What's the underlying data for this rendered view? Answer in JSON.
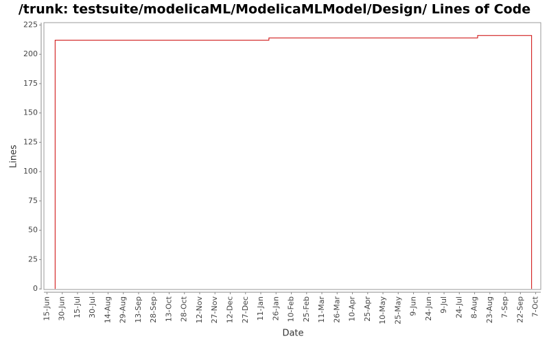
{
  "chart_data": {
    "type": "line",
    "title": "/trunk: testsuite/modelicaML/ModelicaMLModel/Design/ Lines of Code",
    "x_label": "Date",
    "y_label": "Lines",
    "step": "post",
    "x": [
      8,
      8,
      218,
      423,
      476,
      476
    ],
    "series": [
      {
        "color": "#cc0000",
        "values": [
          0,
          212,
          214,
          216,
          216,
          0
        ]
      }
    ],
    "xlim": [
      -3,
      485
    ],
    "xticks": [
      {
        "value": 0,
        "label": "15-Jun"
      },
      {
        "value": 15,
        "label": "30-Jun"
      },
      {
        "value": 30,
        "label": "15-Jul"
      },
      {
        "value": 45,
        "label": "30-Jul"
      },
      {
        "value": 60,
        "label": "14-Aug"
      },
      {
        "value": 75,
        "label": "29-Aug"
      },
      {
        "value": 90,
        "label": "13-Sep"
      },
      {
        "value": 105,
        "label": "28-Sep"
      },
      {
        "value": 120,
        "label": "13-Oct"
      },
      {
        "value": 135,
        "label": "28-Oct"
      },
      {
        "value": 150,
        "label": "12-Nov"
      },
      {
        "value": 165,
        "label": "27-Nov"
      },
      {
        "value": 180,
        "label": "12-Dec"
      },
      {
        "value": 195,
        "label": "27-Dec"
      },
      {
        "value": 210,
        "label": "11-Jan"
      },
      {
        "value": 225,
        "label": "26-Jan"
      },
      {
        "value": 240,
        "label": "10-Feb"
      },
      {
        "value": 255,
        "label": "25-Feb"
      },
      {
        "value": 270,
        "label": "11-Mar"
      },
      {
        "value": 285,
        "label": "26-Mar"
      },
      {
        "value": 300,
        "label": "10-Apr"
      },
      {
        "value": 315,
        "label": "25-Apr"
      },
      {
        "value": 330,
        "label": "10-May"
      },
      {
        "value": 345,
        "label": "25-May"
      },
      {
        "value": 360,
        "label": "9-Jun"
      },
      {
        "value": 375,
        "label": "24-Jun"
      },
      {
        "value": 390,
        "label": "9-Jul"
      },
      {
        "value": 405,
        "label": "24-Jul"
      },
      {
        "value": 420,
        "label": "8-Aug"
      },
      {
        "value": 435,
        "label": "23-Aug"
      },
      {
        "value": 450,
        "label": "7-Sep"
      },
      {
        "value": 465,
        "label": "22-Sep"
      },
      {
        "value": 480,
        "label": "7-Oct"
      }
    ],
    "ylim": [
      -0.5,
      227
    ],
    "yticks": [
      0,
      25,
      50,
      75,
      100,
      125,
      150,
      175,
      200,
      225
    ]
  }
}
